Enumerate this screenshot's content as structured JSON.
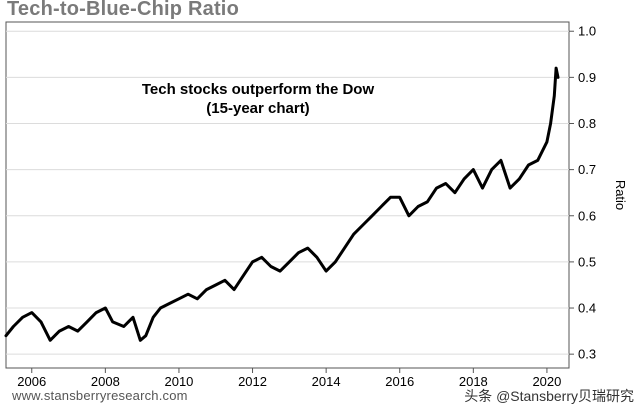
{
  "title": "Tech-to-Blue-Chip Ratio",
  "source": "www.stansberryresearch.com",
  "watermark": "头条 @Stansberry贝瑞研究",
  "chart_data": {
    "type": "line",
    "title": "Tech-to-Blue-Chip Ratio",
    "annotation": [
      "Tech stocks outperform the Dow",
      "(15-year chart)"
    ],
    "xlabel": "",
    "ylabel": "Ratio",
    "xlim": [
      2005.3,
      2020.6
    ],
    "ylim": [
      0.27,
      1.02
    ],
    "x_ticks": [
      2006,
      2008,
      2010,
      2012,
      2014,
      2016,
      2018,
      2020
    ],
    "y_ticks": [
      0.3,
      0.4,
      0.5,
      0.6,
      0.7,
      0.8,
      0.9,
      1.0
    ],
    "y_tick_labels": [
      "0.3",
      "0.4",
      "0.5",
      "0.6",
      "0.7",
      "0.8",
      "0.9",
      "1.0"
    ],
    "grid": "horizontal",
    "y_axis_position": "right",
    "line_color": "#000000",
    "series": [
      {
        "x": [
          2005.3,
          2005.5,
          2005.75,
          2006.0,
          2006.25,
          2006.5,
          2006.75,
          2007.0,
          2007.25,
          2007.5,
          2007.75,
          2008.0,
          2008.2,
          2008.5,
          2008.75,
          2008.95,
          2009.1,
          2009.3,
          2009.5,
          2009.75,
          2010.0,
          2010.25,
          2010.5,
          2010.75,
          2011.0,
          2011.25,
          2011.5,
          2011.75,
          2012.0,
          2012.25,
          2012.5,
          2012.75,
          2013.0,
          2013.25,
          2013.5,
          2013.75,
          2014.0,
          2014.25,
          2014.5,
          2014.75,
          2015.0,
          2015.25,
          2015.5,
          2015.75,
          2016.0,
          2016.25,
          2016.5,
          2016.75,
          2017.0,
          2017.25,
          2017.5,
          2017.75,
          2018.0,
          2018.25,
          2018.5,
          2018.75,
          2019.0,
          2019.25,
          2019.5,
          2019.75,
          2020.0,
          2020.1,
          2020.2,
          2020.25,
          2020.3
        ],
        "values": [
          0.34,
          0.36,
          0.38,
          0.39,
          0.37,
          0.33,
          0.35,
          0.36,
          0.35,
          0.37,
          0.39,
          0.4,
          0.37,
          0.36,
          0.38,
          0.33,
          0.34,
          0.38,
          0.4,
          0.41,
          0.42,
          0.43,
          0.42,
          0.44,
          0.45,
          0.46,
          0.44,
          0.47,
          0.5,
          0.51,
          0.49,
          0.48,
          0.5,
          0.52,
          0.53,
          0.51,
          0.48,
          0.5,
          0.53,
          0.56,
          0.58,
          0.6,
          0.62,
          0.64,
          0.64,
          0.6,
          0.62,
          0.63,
          0.66,
          0.67,
          0.65,
          0.68,
          0.7,
          0.66,
          0.7,
          0.72,
          0.66,
          0.68,
          0.71,
          0.72,
          0.76,
          0.8,
          0.86,
          0.92,
          0.9
        ]
      }
    ]
  }
}
